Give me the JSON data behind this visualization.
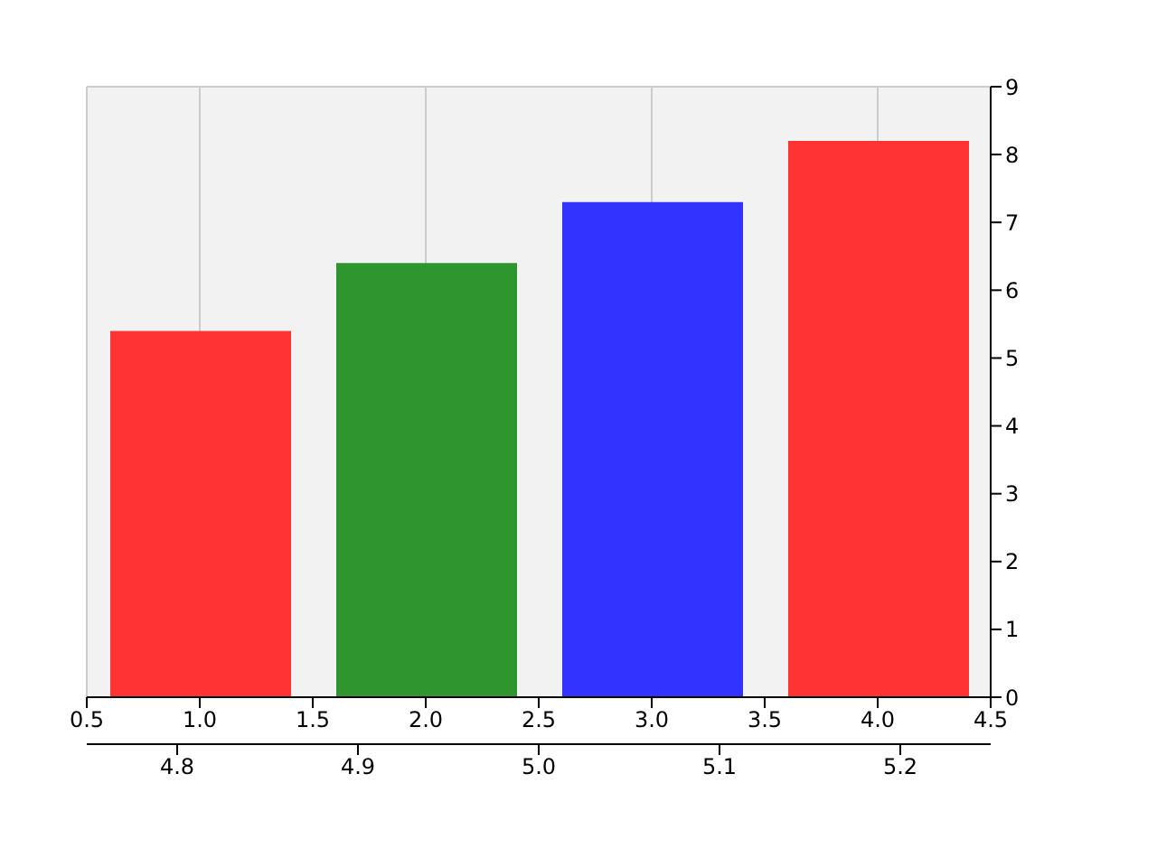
{
  "chart_data": {
    "type": "bar",
    "x": [
      1,
      2,
      3,
      4
    ],
    "values": [
      5.4,
      6.4,
      7.3,
      8.2
    ],
    "colors": [
      "#ff3333",
      "#2f962f",
      "#3333ff",
      "#ff3333"
    ],
    "xlim": [
      0.5,
      4.5
    ],
    "xticks": [
      0.5,
      {
        "value": 1,
        "label": "1.0"
      },
      1.5,
      {
        "value": 2,
        "label": "2.0"
      },
      2.5,
      {
        "value": 3,
        "label": "3.0"
      },
      3.5,
      {
        "value": 4,
        "label": "4.0"
      },
      4.5
    ],
    "ylim": [
      0,
      9
    ],
    "yticks": [
      0,
      1,
      2,
      3,
      4,
      5,
      6,
      7,
      8,
      9
    ],
    "x2lim": [
      4.75,
      5.25
    ],
    "x2ticks": [
      4.8,
      4.9,
      {
        "value": 5,
        "label": "5.0"
      },
      5.1,
      5.2
    ],
    "grid": true
  }
}
